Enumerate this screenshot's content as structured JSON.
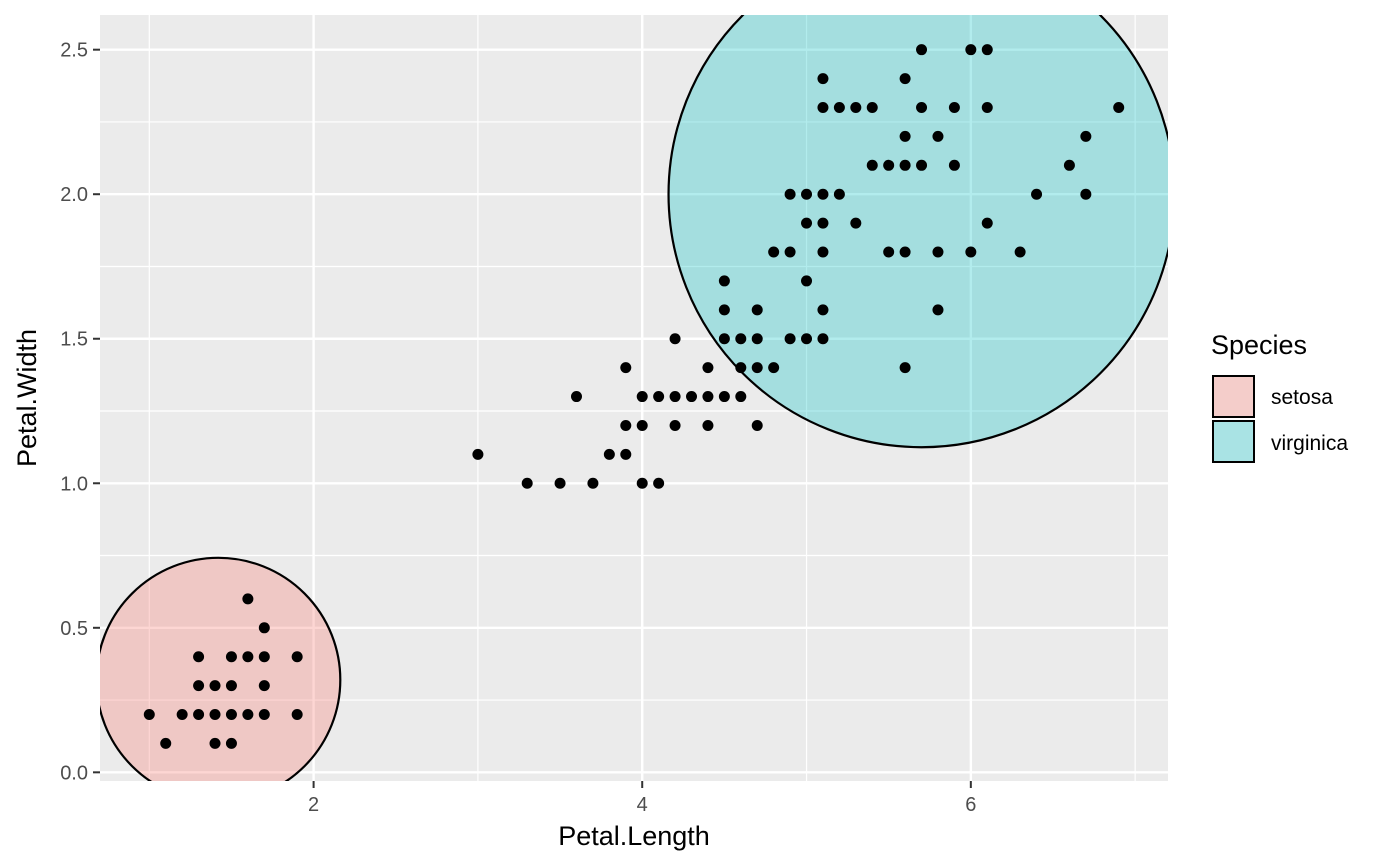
{
  "chart_data": {
    "type": "scatter",
    "xlabel": "Petal.Length",
    "ylabel": "Petal.Width",
    "xlim": [
      0.7,
      7.2
    ],
    "ylim": [
      -0.03,
      2.62
    ],
    "x_ticks": [
      {
        "value": 2,
        "label": "2"
      },
      {
        "value": 4,
        "label": "4"
      },
      {
        "value": 6,
        "label": "6"
      }
    ],
    "y_ticks": [
      {
        "value": 0.0,
        "label": "0.0"
      },
      {
        "value": 0.5,
        "label": "0.5"
      },
      {
        "value": 1.0,
        "label": "1.0"
      },
      {
        "value": 1.5,
        "label": "1.5"
      },
      {
        "value": 2.0,
        "label": "2.0"
      },
      {
        "value": 2.5,
        "label": "2.5"
      }
    ],
    "grid": true,
    "panel_background": "#ebebeb",
    "point_color": "#000000",
    "legend": {
      "title": "Species",
      "position": "right",
      "entries": [
        {
          "label": "setosa",
          "color": "#f8766d"
        },
        {
          "label": "virginica",
          "color": "#00bfc4"
        }
      ]
    },
    "circles": [
      {
        "group": "setosa",
        "cx": 1.42,
        "cy": 0.32,
        "color": "#f8766d",
        "opacity": 0.3
      },
      {
        "group": "virginica",
        "cx": 5.7,
        "cy": 2.0,
        "color": "#00bfc4",
        "opacity": 0.3
      }
    ],
    "points": [
      [
        1.0,
        0.2
      ],
      [
        1.1,
        0.1
      ],
      [
        1.2,
        0.2
      ],
      [
        1.3,
        0.2
      ],
      [
        1.3,
        0.3
      ],
      [
        1.3,
        0.4
      ],
      [
        1.4,
        0.1
      ],
      [
        1.4,
        0.2
      ],
      [
        1.4,
        0.3
      ],
      [
        1.5,
        0.1
      ],
      [
        1.5,
        0.2
      ],
      [
        1.5,
        0.3
      ],
      [
        1.5,
        0.4
      ],
      [
        1.6,
        0.2
      ],
      [
        1.6,
        0.4
      ],
      [
        1.6,
        0.6
      ],
      [
        1.7,
        0.2
      ],
      [
        1.7,
        0.3
      ],
      [
        1.7,
        0.4
      ],
      [
        1.7,
        0.5
      ],
      [
        1.9,
        0.2
      ],
      [
        1.9,
        0.4
      ],
      [
        3.0,
        1.1
      ],
      [
        3.3,
        1.0
      ],
      [
        3.5,
        1.0
      ],
      [
        3.6,
        1.3
      ],
      [
        3.7,
        1.0
      ],
      [
        3.8,
        1.1
      ],
      [
        3.9,
        1.1
      ],
      [
        3.9,
        1.2
      ],
      [
        3.9,
        1.4
      ],
      [
        4.0,
        1.0
      ],
      [
        4.0,
        1.2
      ],
      [
        4.0,
        1.3
      ],
      [
        4.1,
        1.0
      ],
      [
        4.1,
        1.3
      ],
      [
        4.2,
        1.2
      ],
      [
        4.2,
        1.3
      ],
      [
        4.2,
        1.5
      ],
      [
        4.3,
        1.3
      ],
      [
        4.4,
        1.2
      ],
      [
        4.4,
        1.3
      ],
      [
        4.4,
        1.4
      ],
      [
        4.5,
        1.3
      ],
      [
        4.5,
        1.5
      ],
      [
        4.5,
        1.6
      ],
      [
        4.5,
        1.7
      ],
      [
        4.6,
        1.3
      ],
      [
        4.6,
        1.4
      ],
      [
        4.6,
        1.5
      ],
      [
        4.7,
        1.2
      ],
      [
        4.7,
        1.4
      ],
      [
        4.7,
        1.5
      ],
      [
        4.7,
        1.6
      ],
      [
        4.8,
        1.4
      ],
      [
        4.8,
        1.8
      ],
      [
        4.9,
        1.5
      ],
      [
        4.9,
        1.8
      ],
      [
        4.9,
        2.0
      ],
      [
        5.0,
        1.5
      ],
      [
        5.0,
        1.7
      ],
      [
        5.0,
        1.9
      ],
      [
        5.0,
        2.0
      ],
      [
        5.1,
        1.5
      ],
      [
        5.1,
        1.6
      ],
      [
        5.1,
        1.8
      ],
      [
        5.1,
        1.9
      ],
      [
        5.1,
        2.0
      ],
      [
        5.1,
        2.3
      ],
      [
        5.1,
        2.4
      ],
      [
        5.2,
        2.0
      ],
      [
        5.2,
        2.3
      ],
      [
        5.3,
        1.9
      ],
      [
        5.3,
        2.3
      ],
      [
        5.4,
        2.1
      ],
      [
        5.4,
        2.3
      ],
      [
        5.5,
        1.8
      ],
      [
        5.5,
        2.1
      ],
      [
        5.6,
        1.4
      ],
      [
        5.6,
        1.8
      ],
      [
        5.6,
        2.1
      ],
      [
        5.6,
        2.2
      ],
      [
        5.6,
        2.4
      ],
      [
        5.7,
        2.1
      ],
      [
        5.7,
        2.3
      ],
      [
        5.7,
        2.5
      ],
      [
        5.8,
        1.6
      ],
      [
        5.8,
        1.8
      ],
      [
        5.8,
        2.2
      ],
      [
        5.9,
        2.1
      ],
      [
        5.9,
        2.3
      ],
      [
        6.0,
        1.8
      ],
      [
        6.0,
        2.5
      ],
      [
        6.1,
        1.9
      ],
      [
        6.1,
        2.3
      ],
      [
        6.1,
        2.5
      ],
      [
        6.3,
        1.8
      ],
      [
        6.4,
        2.0
      ],
      [
        6.6,
        2.1
      ],
      [
        6.7,
        2.0
      ],
      [
        6.7,
        2.2
      ],
      [
        6.9,
        2.3
      ]
    ]
  }
}
